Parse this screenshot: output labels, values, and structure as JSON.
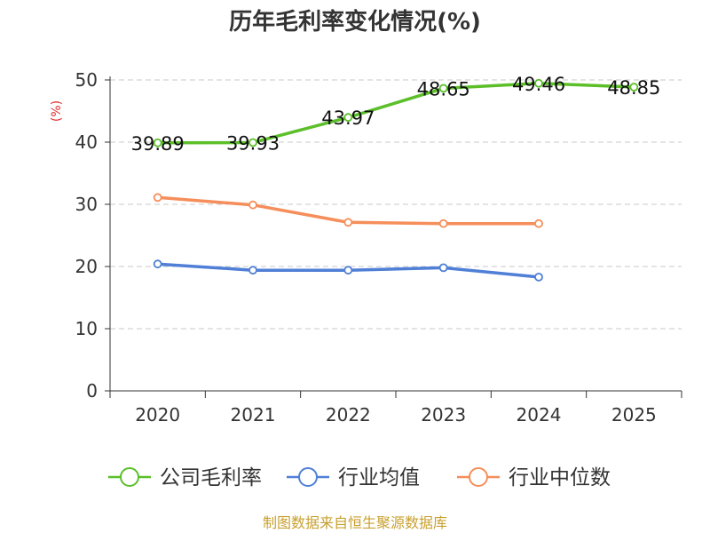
{
  "chart_data": {
    "type": "line",
    "title": "历年毛利率变化情况(%)",
    "ylabel": "(%)",
    "xlabel": "",
    "categories": [
      "2020",
      "2021",
      "2022",
      "2023",
      "2024",
      "2025"
    ],
    "ylim": [
      0,
      50
    ],
    "yticks": [
      "0",
      "10",
      "20",
      "30",
      "40",
      "50"
    ],
    "grid": true,
    "legend_position": "bottom",
    "series": [
      {
        "name": "公司毛利率",
        "color": "#5cbf2a",
        "values": [
          39.89,
          39.93,
          43.97,
          48.65,
          49.46,
          48.85
        ],
        "labels": [
          "39.89",
          "39.93",
          "43.97",
          "48.65",
          "49.46",
          "48.85"
        ]
      },
      {
        "name": "行业均值",
        "color": "#4f7fd6",
        "values": [
          20.4,
          19.4,
          19.4,
          19.8,
          18.3,
          null
        ]
      },
      {
        "name": "行业中位数",
        "color": "#f58e5a",
        "values": [
          31.1,
          29.9,
          27.1,
          26.9,
          26.9,
          null
        ]
      }
    ],
    "source": "制图数据来自恒生聚源数据库",
    "source_color": "#c8a030",
    "ylabel_color": "#e03030"
  }
}
